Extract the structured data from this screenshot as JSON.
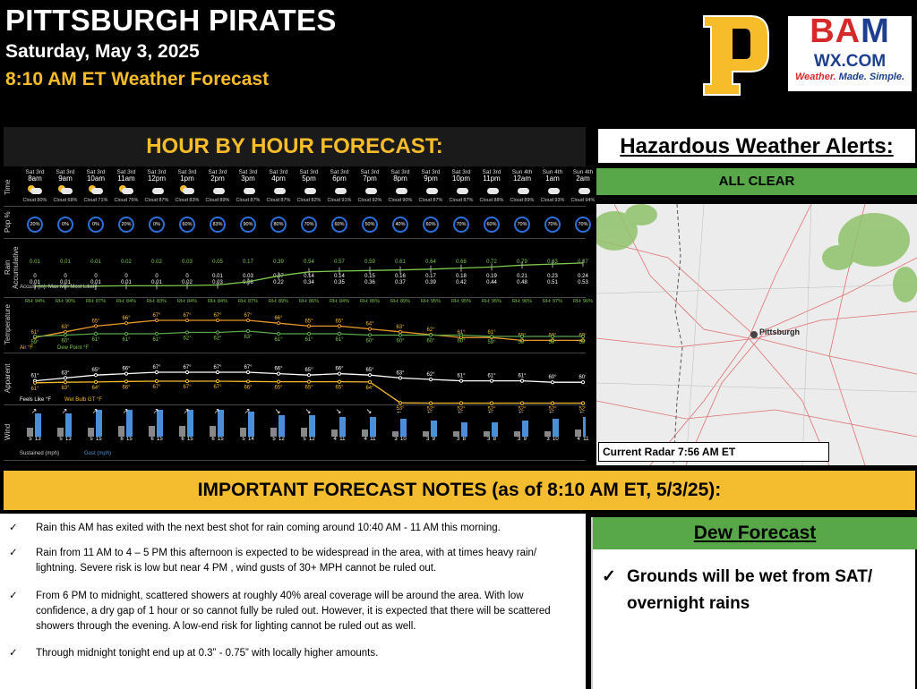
{
  "header": {
    "title": "PITTSBURGH PIRATES",
    "date": "Saturday, May 3, 2025",
    "subtitle": "8:10 AM ET Weather Forecast"
  },
  "logos": {
    "bam_line1a": "BA",
    "bam_line1b": "M",
    "bam_line2": "WX.COM",
    "bam_tag_a": "Weather.",
    "bam_tag_b": " Made. Simple."
  },
  "hour": {
    "title": "HOUR BY HOUR FORECAST:",
    "row_labels": [
      "Time",
      "Pop %",
      "Rain Accumulative",
      "Temperature",
      "Apparent",
      "Wind"
    ],
    "hours": [
      {
        "day": "Sat 3rd",
        "time": "8am",
        "cloud": "Cloud 80%",
        "pop": "20%",
        "rain": "0.01",
        "accum": "0",
        "accum2": "0.01",
        "temp": "61°",
        "rh": "RH: 94%",
        "dew": "59°",
        "app": "61°",
        "wb": "61°",
        "wind": "5",
        "gust": "13"
      },
      {
        "day": "Sat 3rd",
        "time": "9am",
        "cloud": "Cloud 68%",
        "pop": "0%",
        "rain": "0.01",
        "accum": "0",
        "accum2": "0.01",
        "temp": "63°",
        "rh": "RH: 90%",
        "dew": "60°",
        "app": "63°",
        "wb": "63°",
        "wind": "5",
        "gust": "13"
      },
      {
        "day": "Sat 3rd",
        "time": "10am",
        "cloud": "Cloud 71%",
        "pop": "0%",
        "rain": "0.01",
        "accum": "0",
        "accum2": "0.01",
        "temp": "65°",
        "rh": "RH: 87%",
        "dew": "61°",
        "app": "65°",
        "wb": "64°",
        "wind": "5",
        "gust": "15"
      },
      {
        "day": "Sat 3rd",
        "time": "11am",
        "cloud": "Cloud 76%",
        "pop": "20%",
        "rain": "0.02",
        "accum": "0",
        "accum2": "0.01",
        "temp": "66°",
        "rh": "RH: 84%",
        "dew": "61°",
        "app": "66°",
        "wb": "66°",
        "wind": "6",
        "gust": "15"
      },
      {
        "day": "Sat 3rd",
        "time": "12pm",
        "cloud": "Cloud 87%",
        "pop": "0%",
        "rain": "0.02",
        "accum": "0",
        "accum2": "0.01",
        "temp": "67°",
        "rh": "RH: 83%",
        "dew": "61°",
        "app": "67°",
        "wb": "67°",
        "wind": "6",
        "gust": "15"
      },
      {
        "day": "Sat 3rd",
        "time": "1pm",
        "cloud": "Cloud 83%",
        "pop": "60%",
        "rain": "0.03",
        "accum": "0",
        "accum2": "0.02",
        "temp": "67°",
        "rh": "RH: 84%",
        "dew": "62°",
        "app": "67°",
        "wb": "67°",
        "wind": "6",
        "gust": "15"
      },
      {
        "day": "Sat 3rd",
        "time": "2pm",
        "cloud": "Cloud 89%",
        "pop": "83%",
        "rain": "0.05",
        "accum": "0.01",
        "accum2": "0.03",
        "temp": "67°",
        "rh": "RH: 84%",
        "dew": "62°",
        "app": "67°",
        "wb": "67°",
        "wind": "6",
        "gust": "15"
      },
      {
        "day": "Sat 3rd",
        "time": "3pm",
        "cloud": "Cloud 87%",
        "pop": "90%",
        "rain": "0.17",
        "accum": "0.03",
        "accum2": "0.08",
        "temp": "67°",
        "rh": "RH: 87%",
        "dew": "63°",
        "app": "67°",
        "wb": "66°",
        "wind": "5",
        "gust": "14"
      },
      {
        "day": "Sat 3rd",
        "time": "4pm",
        "cloud": "Cloud 87%",
        "pop": "80%",
        "rain": "0.39",
        "accum": "0.07",
        "accum2": "0.22",
        "temp": "66°",
        "rh": "RH: 89%",
        "dew": "61°",
        "app": "66°",
        "wb": "65°",
        "wind": "5",
        "gust": "12"
      },
      {
        "day": "Sat 3rd",
        "time": "5pm",
        "cloud": "Cloud 82%",
        "pop": "70%",
        "rain": "0.54",
        "accum": "0.14",
        "accum2": "0.34",
        "temp": "65°",
        "rh": "RH: 86%",
        "dew": "61°",
        "app": "65°",
        "wb": "65°",
        "wind": "5",
        "gust": "12"
      },
      {
        "day": "Sat 3rd",
        "time": "6pm",
        "cloud": "Cloud 91%",
        "pop": "60%",
        "rain": "0.57",
        "accum": "0.14",
        "accum2": "0.35",
        "temp": "65°",
        "rh": "RH: 84%",
        "dew": "61°",
        "app": "66°",
        "wb": "65°",
        "wind": "4",
        "gust": "11"
      },
      {
        "day": "Sat 3rd",
        "time": "7pm",
        "cloud": "Cloud 92%",
        "pop": "50%",
        "rain": "0.59",
        "accum": "0.15",
        "accum2": "0.36",
        "temp": "64°",
        "rh": "RH: 86%",
        "dew": "60°",
        "app": "65°",
        "wb": "64°",
        "wind": "4",
        "gust": "11"
      },
      {
        "day": "Sat 3rd",
        "time": "8pm",
        "cloud": "Cloud 90%",
        "pop": "40%",
        "rain": "0.61",
        "accum": "0.16",
        "accum2": "0.37",
        "temp": "63°",
        "rh": "RH: 89%",
        "dew": "60°",
        "app": "63°",
        "wb": "53°",
        "wind": "3",
        "gust": "10"
      },
      {
        "day": "Sat 3rd",
        "time": "9pm",
        "cloud": "Cloud 87%",
        "pop": "60%",
        "rain": "0.64",
        "accum": "0.17",
        "accum2": "0.39",
        "temp": "62°",
        "rh": "RH: 95%",
        "dew": "60°",
        "app": "62°",
        "wb": "52°",
        "wind": "3",
        "gust": "9"
      },
      {
        "day": "Sat 3rd",
        "time": "10pm",
        "cloud": "Cloud 87%",
        "pop": "70%",
        "rain": "0.68",
        "accum": "0.18",
        "accum2": "0.42",
        "temp": "61°",
        "rh": "RH: 95%",
        "dew": "60°",
        "app": "61°",
        "wb": "52°",
        "wind": "3",
        "gust": "8"
      },
      {
        "day": "Sat 3rd",
        "time": "11pm",
        "cloud": "Cloud 88%",
        "pop": "60%",
        "rain": "0.72",
        "accum": "0.19",
        "accum2": "0.44",
        "temp": "61°",
        "rh": "RH: 95%",
        "dew": "59°",
        "app": "61°",
        "wb": "52°",
        "wind": "3",
        "gust": "8"
      },
      {
        "day": "Sun 4th",
        "time": "12am",
        "cloud": "Cloud 89%",
        "pop": "70%",
        "rain": "0.79",
        "accum": "0.21",
        "accum2": "0.48",
        "temp": "60°",
        "rh": "RH: 96%",
        "dew": "59°",
        "app": "61°",
        "wb": "52°",
        "wind": "3",
        "gust": "9"
      },
      {
        "day": "Sun 4th",
        "time": "1am",
        "cloud": "Cloud 93%",
        "pop": "70%",
        "rain": "0.83",
        "accum": "0.23",
        "accum2": "0.51",
        "temp": "60°",
        "rh": "RH: 97%",
        "dew": "59°",
        "app": "60°",
        "wb": "52°",
        "wind": "3",
        "gust": "10"
      },
      {
        "day": "Sun 4th",
        "time": "2am",
        "cloud": "Cloud 94%",
        "pop": "70%",
        "rain": "0.87",
        "accum": "0.24",
        "accum2": "0.53",
        "temp": "60°",
        "rh": "RH: 96%",
        "dew": "59°",
        "app": "60°",
        "wb": "52°",
        "wind": "4",
        "gust": "11"
      }
    ],
    "rain_legend": "Accum (in): Max  Min  Most Likely",
    "temp_legend_a": "Air °F",
    "temp_legend_b": "Dew Point °F",
    "app_legend_a": "Feels Like °F",
    "app_legend_b": "Wet Bulb GT °F",
    "wind_legend_a": "Sustained (mph)",
    "wind_legend_b": "Gust (mph)"
  },
  "alerts": {
    "title": "Hazardous Weather Alerts:",
    "status": "ALL CLEAR",
    "radar_caption": "Current Radar 7:56 AM ET",
    "city": "Pittsburgh"
  },
  "notes": {
    "title": "IMPORTANT FORECAST NOTES (as of 8:10 AM ET, 5/3/25):",
    "items": [
      "Rain this AM has exited with the next best shot for rain coming around 10:40 AM - 11 AM this morning.",
      "Rain from 11 AM to 4 – 5 PM this afternoon is expected to be widespread in the area, with at times heavy rain/ lightning.  Severe risk is low but near  4 PM , wind gusts of 30+ MPH cannot be ruled out.",
      "From 6 PM to midnight, scattered showers at roughly 40% areal coverage will be around the area.   With low confidence, a dry gap of 1 hour or so cannot fully be ruled out.  However, it is expected that there will be scattered showers through the evening.  A low-end risk for lighting cannot be ruled out as well.",
      "Through midnight tonight end up at 0.3” -  0.75” with locally higher amounts."
    ]
  },
  "dew": {
    "title": "Dew Forecast",
    "item": "Grounds will be wet from SAT/ overnight rains"
  },
  "colors": {
    "gold": "#f7bc2a",
    "green": "#58a84a",
    "bar_gust": "#4a90d9",
    "bar_sus": "#888888"
  }
}
